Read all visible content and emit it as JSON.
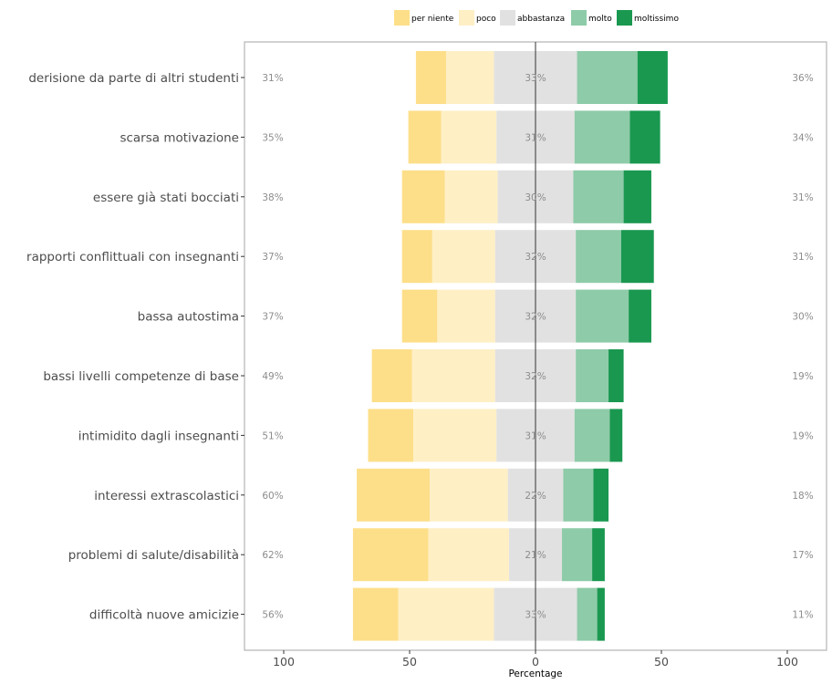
{
  "chart_data": {
    "type": "bar",
    "orientation": "horizontal-diverging-stacked",
    "xlabel": "Percentage",
    "x_ticks": [
      "100",
      "50",
      "0",
      "50",
      "100"
    ],
    "legend_position": "top",
    "levels": [
      "per niente",
      "poco",
      "abbastanza",
      "molto",
      "moltissimo"
    ],
    "colors": {
      "per niente": "#fddf8a",
      "poco": "#feefc5",
      "abbastanza": "#e1e1e1",
      "molto": "#8ecba8",
      "moltissimo": "#1a9850",
      "frame": "#b3b3b3"
    },
    "categories": [
      "derisione da parte di altri studenti",
      "scarsa motivazione",
      "essere già stati bocciati",
      "rapporti conflittuali con insegnanti",
      "bassa autostima",
      "bassi livelli competenze di base",
      "intimidito dagli insegnanti",
      "interessi extrascolastici",
      "problemi di salute/disabilità",
      "difficoltà nuove amicizie"
    ],
    "series": [
      {
        "name": "per niente",
        "values": [
          12,
          13,
          17,
          12,
          14,
          16,
          18,
          29,
          30,
          18
        ]
      },
      {
        "name": "poco",
        "values": [
          19,
          22,
          21,
          25,
          23,
          33,
          33,
          31,
          32,
          38
        ]
      },
      {
        "name": "abbastanza",
        "values": [
          33,
          31,
          30,
          32,
          32,
          32,
          31,
          22,
          21,
          33
        ]
      },
      {
        "name": "molto",
        "values": [
          24,
          22,
          20,
          18,
          21,
          13,
          14,
          12,
          12,
          8
        ]
      },
      {
        "name": "moltissimo",
        "values": [
          12,
          12,
          11,
          13,
          9,
          6,
          5,
          6,
          5,
          3
        ]
      }
    ],
    "left_labels": [
      "31%",
      "35%",
      "38%",
      "37%",
      "37%",
      "49%",
      "51%",
      "60%",
      "62%",
      "56%"
    ],
    "center_labels": [
      "33%",
      "31%",
      "30%",
      "32%",
      "32%",
      "32%",
      "31%",
      "22%",
      "21%",
      "33%"
    ],
    "right_labels": [
      "36%",
      "34%",
      "31%",
      "31%",
      "30%",
      "19%",
      "19%",
      "18%",
      "17%",
      "11%"
    ]
  }
}
